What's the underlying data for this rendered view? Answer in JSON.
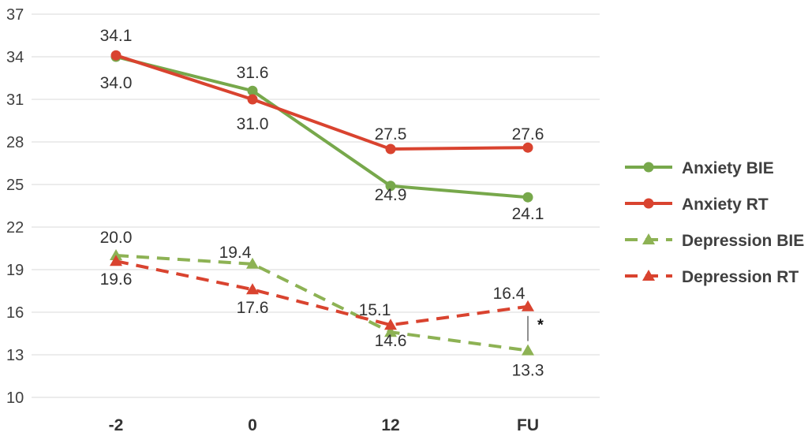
{
  "chart_data": {
    "type": "line",
    "title": "",
    "xlabel": "",
    "ylabel": "",
    "categories": [
      "-2",
      "0",
      "12",
      "FU"
    ],
    "ylim": [
      10,
      37
    ],
    "yticks": [
      10,
      13,
      16,
      19,
      22,
      25,
      28,
      31,
      34,
      37
    ],
    "grid": true,
    "legend_position": "right",
    "series": [
      {
        "name": "Anxiety BIE",
        "values": [
          34.0,
          31.6,
          24.9,
          24.1
        ],
        "labels": [
          "34.0",
          "31.6",
          "24.9",
          "24.1"
        ],
        "color": "#77a84b",
        "dash": false,
        "marker": "circle"
      },
      {
        "name": "Anxiety RT",
        "values": [
          34.1,
          31.0,
          27.5,
          27.6
        ],
        "labels": [
          "34.1",
          "31.0",
          "27.5",
          "27.6"
        ],
        "color": "#d9432f",
        "dash": false,
        "marker": "circle"
      },
      {
        "name": "Depression BIE",
        "values": [
          20.0,
          19.4,
          14.6,
          13.3
        ],
        "labels": [
          "20.0",
          "19.4",
          "14.6",
          "13.3"
        ],
        "color": "#8db254",
        "dash": true,
        "marker": "triangle"
      },
      {
        "name": "Depression RT",
        "values": [
          19.6,
          17.6,
          15.1,
          16.4
        ],
        "labels": [
          "19.6",
          "17.6",
          "15.1",
          "16.4"
        ],
        "color": "#d9432f",
        "dash": true,
        "marker": "triangle"
      }
    ],
    "annotation": {
      "text": "*",
      "category": "FU",
      "between": [
        "Depression BIE",
        "Depression RT"
      ]
    }
  }
}
